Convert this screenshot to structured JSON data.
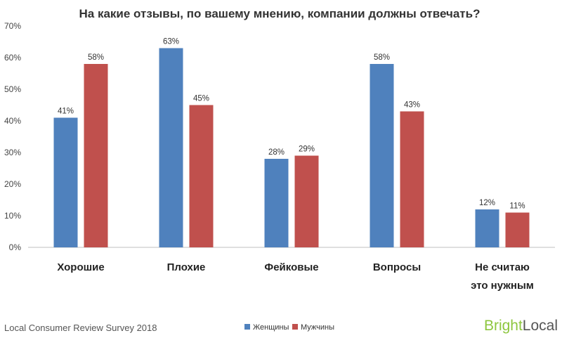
{
  "chart_data": {
    "type": "bar",
    "title": "На какие отзывы, по вашему мнению, компании должны отвечать?",
    "categories": [
      [
        "Хорошие"
      ],
      [
        "Плохие"
      ],
      [
        "Фейковые"
      ],
      [
        "Вопросы"
      ],
      [
        "Не считаю",
        "это нужным"
      ]
    ],
    "series": [
      {
        "name": "Женщины",
        "color": "#4f81bd",
        "values": [
          41,
          63,
          28,
          58,
          12
        ]
      },
      {
        "name": "Мужчины",
        "color": "#c0504d",
        "values": [
          58,
          45,
          29,
          43,
          11
        ]
      }
    ],
    "data_labels": [
      [
        "41%",
        "58%"
      ],
      [
        "63%",
        "45%"
      ],
      [
        "28%",
        "29%"
      ],
      [
        "58%",
        "43%"
      ],
      [
        "12%",
        "11%"
      ]
    ],
    "y_ticks": [
      "0%",
      "10%",
      "20%",
      "30%",
      "40%",
      "50%",
      "60%",
      "70%"
    ],
    "ylim": [
      0,
      70
    ],
    "grid": false,
    "legend_position": "bottom-center"
  },
  "footer": {
    "source": "Local Consumer Review Survey 2018",
    "logo_part1": "Bright",
    "logo_part2": "Local"
  }
}
